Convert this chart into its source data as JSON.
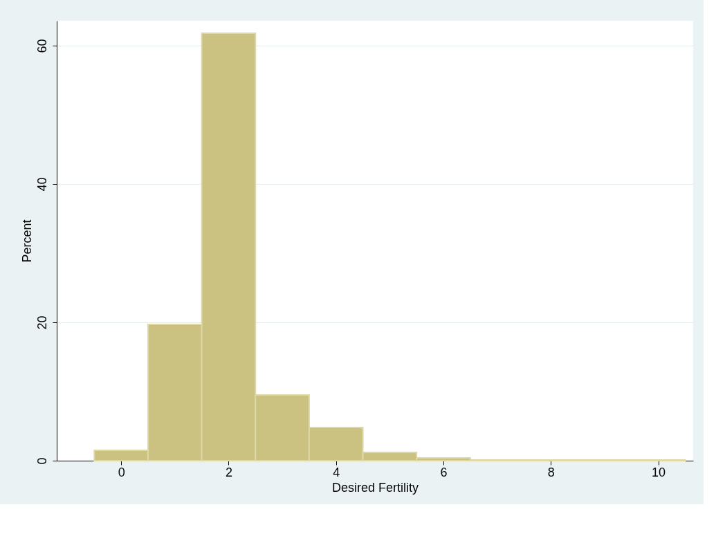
{
  "chart_data": {
    "type": "histogram",
    "xlabel": "Desired Fertility",
    "ylabel": "Percent",
    "bins": [
      -0.5,
      0.5,
      1.5,
      2.5,
      3.5,
      4.5,
      5.5,
      6.5,
      7.5,
      8.5,
      9.5,
      10.5
    ],
    "values": [
      1.5,
      19.7,
      61.8,
      9.5,
      4.8,
      1.2,
      0.4,
      0.1,
      0.1,
      0.1,
      0.1
    ],
    "color": "#cbc282",
    "xlim": [
      -1.2,
      10.65
    ],
    "xticks": [
      0,
      2,
      4,
      6,
      8,
      10
    ],
    "ylim": [
      0,
      63.6
    ],
    "yticks": [
      0,
      20,
      40,
      60
    ],
    "grid": "y"
  }
}
